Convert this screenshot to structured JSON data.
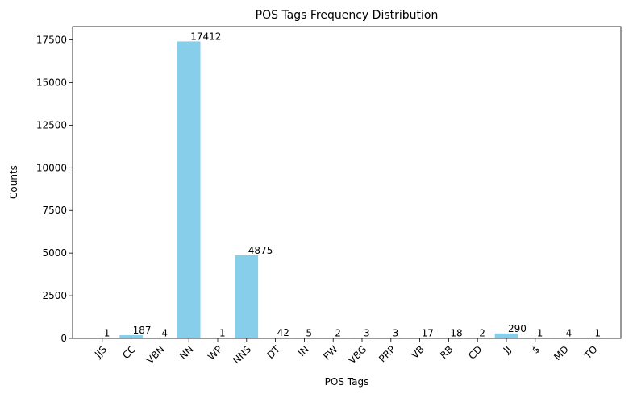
{
  "chart_data": {
    "type": "bar",
    "title": "POS Tags Frequency Distribution",
    "xlabel": "POS Tags",
    "ylabel": "Counts",
    "categories": [
      "JJS",
      "CC",
      "VBN",
      "NN",
      "WP",
      "NNS",
      "DT",
      "IN",
      "FW",
      "VBG",
      "PRP",
      "VB",
      "RB",
      "CD",
      "JJ",
      "$",
      "MD",
      "TO"
    ],
    "values": [
      1,
      187,
      4,
      17412,
      1,
      4875,
      42,
      5,
      2,
      3,
      3,
      17,
      18,
      2,
      290,
      1,
      4,
      1
    ],
    "ylim": [
      0,
      18282.6
    ],
    "yticks": [
      0,
      2500,
      5000,
      7500,
      10000,
      12500,
      15000,
      17500
    ],
    "bar_color": "#87ceeb",
    "grid": false,
    "data_labels": true
  }
}
